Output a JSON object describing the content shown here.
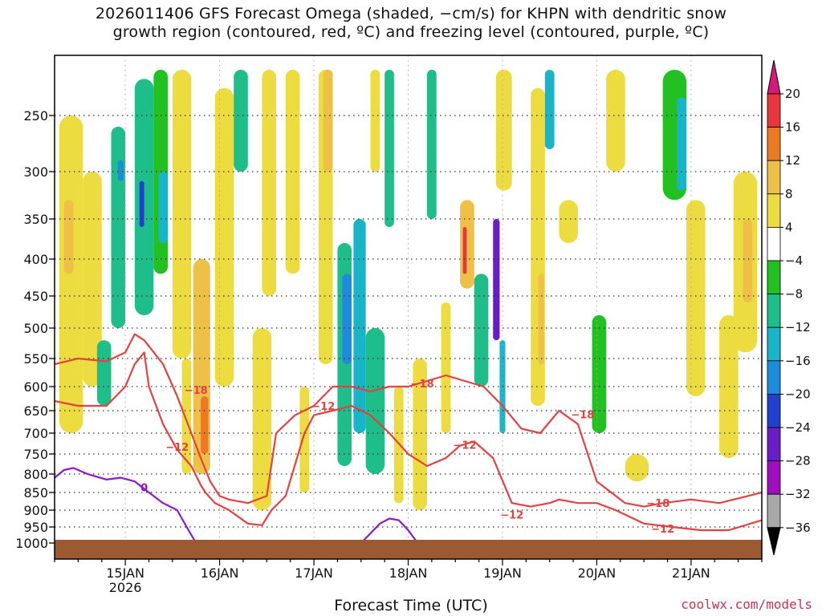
{
  "title_line1": "2026011406 GFS Forecast Omega (shaded, −cm/s) for KHPN with dendritic snow",
  "title_line2": "growth region (contoured, red, ºC) and freezing level (contoured, purple, ºC)",
  "credit": "coolwx.com/models",
  "chart_data": {
    "type": "heatmap",
    "title": "2026011406 GFS Forecast Omega (shaded, −cm/s) for KHPN with dendritic snow growth region (contoured, red, ºC) and freezing level (contoured, purple, ºC)",
    "xlabel": "Forecast Time (UTC)",
    "ylabel": "",
    "x_ticks": [
      "15JAN",
      "16JAN",
      "17JAN",
      "18JAN",
      "19JAN",
      "20JAN",
      "21JAN"
    ],
    "x_subtick": "2026",
    "y_ticks": [
      250,
      300,
      350,
      400,
      450,
      500,
      550,
      600,
      650,
      700,
      750,
      800,
      850,
      900,
      950,
      1000
    ],
    "y_range_hpa": [
      1000,
      200
    ],
    "x_range_days": [
      14.25,
      21.75
    ],
    "grid": true,
    "colorbar": {
      "labels": [
        "20",
        "16",
        "12",
        "8",
        "4",
        "−4",
        "−8",
        "−12",
        "−16",
        "−20",
        "−24",
        "−28",
        "−32",
        "−36"
      ],
      "colors": [
        "#d8187a",
        "#e8363a",
        "#ec7a22",
        "#eec046",
        "#ecdc40",
        "#ffffff",
        "#22c020",
        "#1ebe8a",
        "#18b4c8",
        "#1e8cdc",
        "#2040d0",
        "#6a1cc8",
        "#a00ec0",
        "#a8a8a8",
        "#000000"
      ]
    },
    "omega_cells": [
      {
        "x0": 14.3,
        "x1": 14.55,
        "p_top": 250,
        "p_bot": 700,
        "v": 6
      },
      {
        "x0": 14.35,
        "x1": 14.45,
        "p_top": 330,
        "p_bot": 420,
        "v": 10
      },
      {
        "x0": 14.55,
        "x1": 14.75,
        "p_top": 300,
        "p_bot": 600,
        "v": 5
      },
      {
        "x0": 14.7,
        "x1": 14.85,
        "p_top": 520,
        "p_bot": 640,
        "v": -10
      },
      {
        "x0": 14.85,
        "x1": 15.0,
        "p_top": 260,
        "p_bot": 500,
        "v": -9
      },
      {
        "x0": 14.92,
        "x1": 14.98,
        "p_top": 290,
        "p_bot": 310,
        "v": -18
      },
      {
        "x0": 15.1,
        "x1": 15.3,
        "p_top": 210,
        "p_bot": 480,
        "v": -11
      },
      {
        "x0": 15.15,
        "x1": 15.2,
        "p_top": 310,
        "p_bot": 360,
        "v": -20
      },
      {
        "x0": 15.3,
        "x1": 15.45,
        "p_top": 200,
        "p_bot": 420,
        "v": -7
      },
      {
        "x0": 15.35,
        "x1": 15.45,
        "p_top": 300,
        "p_bot": 380,
        "v": -15
      },
      {
        "x0": 15.5,
        "x1": 15.7,
        "p_top": 200,
        "p_bot": 550,
        "v": 5
      },
      {
        "x0": 15.6,
        "x1": 15.7,
        "p_top": 550,
        "p_bot": 800,
        "v": 7
      },
      {
        "x0": 15.72,
        "x1": 15.9,
        "p_top": 400,
        "p_bot": 800,
        "v": 8
      },
      {
        "x0": 15.8,
        "x1": 15.88,
        "p_top": 620,
        "p_bot": 750,
        "v": 13
      },
      {
        "x0": 15.95,
        "x1": 16.15,
        "p_top": 220,
        "p_bot": 600,
        "v": 5
      },
      {
        "x0": 16.15,
        "x1": 16.3,
        "p_top": 200,
        "p_bot": 300,
        "v": -9
      },
      {
        "x0": 16.35,
        "x1": 16.55,
        "p_top": 500,
        "p_bot": 900,
        "v": 5
      },
      {
        "x0": 16.45,
        "x1": 16.6,
        "p_top": 200,
        "p_bot": 450,
        "v": 6
      },
      {
        "x0": 16.7,
        "x1": 16.85,
        "p_top": 200,
        "p_bot": 420,
        "v": 5
      },
      {
        "x0": 16.85,
        "x1": 16.95,
        "p_top": 600,
        "p_bot": 850,
        "v": 7
      },
      {
        "x0": 17.05,
        "x1": 17.2,
        "p_top": 200,
        "p_bot": 560,
        "v": 5
      },
      {
        "x0": 17.1,
        "x1": 17.2,
        "p_top": 200,
        "p_bot": 300,
        "v": 10
      },
      {
        "x0": 17.25,
        "x1": 17.4,
        "p_top": 380,
        "p_bot": 780,
        "v": -9
      },
      {
        "x0": 17.3,
        "x1": 17.4,
        "p_top": 420,
        "p_bot": 560,
        "v": -18
      },
      {
        "x0": 17.42,
        "x1": 17.55,
        "p_top": 350,
        "p_bot": 700,
        "v": -12
      },
      {
        "x0": 17.55,
        "x1": 17.75,
        "p_top": 500,
        "p_bot": 800,
        "v": -9
      },
      {
        "x0": 17.6,
        "x1": 17.7,
        "p_top": 200,
        "p_bot": 300,
        "v": 6
      },
      {
        "x0": 17.75,
        "x1": 17.85,
        "p_top": 200,
        "p_bot": 360,
        "v": -8
      },
      {
        "x0": 17.85,
        "x1": 17.95,
        "p_top": 600,
        "p_bot": 880,
        "v": 5
      },
      {
        "x0": 18.05,
        "x1": 18.2,
        "p_top": 550,
        "p_bot": 900,
        "v": 5
      },
      {
        "x0": 18.2,
        "x1": 18.3,
        "p_top": 200,
        "p_bot": 350,
        "v": -9
      },
      {
        "x0": 18.35,
        "x1": 18.45,
        "p_top": 460,
        "p_bot": 700,
        "v": 6
      },
      {
        "x0": 18.55,
        "x1": 18.7,
        "p_top": 330,
        "p_bot": 440,
        "v": 10
      },
      {
        "x0": 18.58,
        "x1": 18.62,
        "p_top": 360,
        "p_bot": 420,
        "v": 17
      },
      {
        "x0": 18.7,
        "x1": 18.85,
        "p_top": 420,
        "p_bot": 600,
        "v": -10
      },
      {
        "x0": 18.9,
        "x1": 18.97,
        "p_top": 350,
        "p_bot": 520,
        "v": -25
      },
      {
        "x0": 18.97,
        "x1": 19.03,
        "p_top": 520,
        "p_bot": 700,
        "v": -13
      },
      {
        "x0": 18.93,
        "x1": 19.1,
        "p_top": 200,
        "p_bot": 320,
        "v": 5
      },
      {
        "x0": 19.3,
        "x1": 19.45,
        "p_top": 220,
        "p_bot": 640,
        "v": 6
      },
      {
        "x0": 19.38,
        "x1": 19.44,
        "p_top": 420,
        "p_bot": 560,
        "v": 10
      },
      {
        "x0": 19.45,
        "x1": 19.55,
        "p_top": 200,
        "p_bot": 280,
        "v": -13
      },
      {
        "x0": 19.6,
        "x1": 19.8,
        "p_top": 330,
        "p_bot": 380,
        "v": 5
      },
      {
        "x0": 19.95,
        "x1": 20.1,
        "p_top": 480,
        "p_bot": 700,
        "v": -7
      },
      {
        "x0": 20.1,
        "x1": 20.3,
        "p_top": 200,
        "p_bot": 300,
        "v": 5
      },
      {
        "x0": 20.3,
        "x1": 20.55,
        "p_top": 750,
        "p_bot": 820,
        "v": 5
      },
      {
        "x0": 20.7,
        "x1": 20.95,
        "p_top": 200,
        "p_bot": 330,
        "v": -7
      },
      {
        "x0": 20.85,
        "x1": 20.95,
        "p_top": 230,
        "p_bot": 320,
        "v": -13
      },
      {
        "x0": 20.95,
        "x1": 21.15,
        "p_top": 330,
        "p_bot": 620,
        "v": 5
      },
      {
        "x0": 21.3,
        "x1": 21.5,
        "p_top": 480,
        "p_bot": 760,
        "v": 5
      },
      {
        "x0": 21.45,
        "x1": 21.7,
        "p_top": 300,
        "p_bot": 540,
        "v": 5
      },
      {
        "x0": 21.55,
        "x1": 21.65,
        "p_top": 350,
        "p_bot": 460,
        "v": 8
      }
    ],
    "contours": [
      {
        "name": "dgz-upper-minus12",
        "color": "#e84040",
        "label": "−12",
        "x": [
          14.25,
          14.5,
          14.8,
          15.0,
          15.1,
          15.2,
          15.25,
          15.4,
          15.55,
          15.7,
          15.8,
          15.85,
          15.95,
          16.1,
          16.3,
          16.45,
          16.55,
          16.7,
          16.9,
          17.0,
          17.2,
          17.4,
          17.6,
          17.8,
          18.0,
          18.2,
          18.4,
          18.55,
          18.7,
          18.9,
          19.1,
          19.3,
          19.5,
          19.6,
          19.8,
          20.0,
          20.2,
          20.5,
          20.8,
          21.1,
          21.4,
          21.75
        ],
        "p": [
          630,
          640,
          640,
          600,
          560,
          540,
          600,
          680,
          740,
          780,
          830,
          850,
          880,
          900,
          940,
          945,
          900,
          860,
          700,
          660,
          650,
          640,
          660,
          700,
          750,
          780,
          760,
          730,
          720,
          760,
          880,
          890,
          880,
          870,
          880,
          880,
          900,
          940,
          950,
          960,
          960,
          930
        ]
      },
      {
        "name": "dgz-lower-minus18",
        "color": "#e84040",
        "label": "−18",
        "x": [
          14.25,
          14.5,
          14.8,
          15.0,
          15.1,
          15.2,
          15.4,
          15.55,
          15.7,
          15.8,
          15.9,
          16.0,
          16.1,
          16.3,
          16.5,
          16.6,
          16.8,
          17.0,
          17.2,
          17.4,
          17.6,
          17.8,
          18.0,
          18.2,
          18.4,
          18.6,
          18.8,
          19.0,
          19.2,
          19.4,
          19.6,
          19.8,
          20.0,
          20.3,
          20.5,
          20.7,
          21.0,
          21.3,
          21.6,
          21.75
        ],
        "p": [
          560,
          550,
          555,
          540,
          510,
          520,
          560,
          620,
          700,
          760,
          820,
          860,
          870,
          880,
          860,
          700,
          660,
          640,
          600,
          600,
          610,
          600,
          600,
          590,
          580,
          590,
          600,
          640,
          690,
          700,
          650,
          680,
          820,
          880,
          890,
          880,
          870,
          880,
          860,
          850
        ]
      },
      {
        "name": "freezing-level-zero",
        "color": "#9018c8",
        "label": "0",
        "x": [
          14.25,
          14.35,
          14.45,
          14.6,
          14.8,
          14.95,
          15.1,
          15.25,
          15.4,
          15.55,
          15.65,
          15.75
        ],
        "p": [
          810,
          790,
          785,
          800,
          815,
          810,
          820,
          850,
          880,
          900,
          950,
          1000
        ]
      },
      {
        "name": "freezing-level-zero-b",
        "color": "#9018c8",
        "label": "",
        "x": [
          17.5,
          17.6,
          17.7,
          17.8,
          17.9,
          18.0,
          18.1
        ],
        "p": [
          1000,
          970,
          940,
          925,
          930,
          960,
          1000
        ]
      }
    ],
    "terrain_pressure": 990
  }
}
